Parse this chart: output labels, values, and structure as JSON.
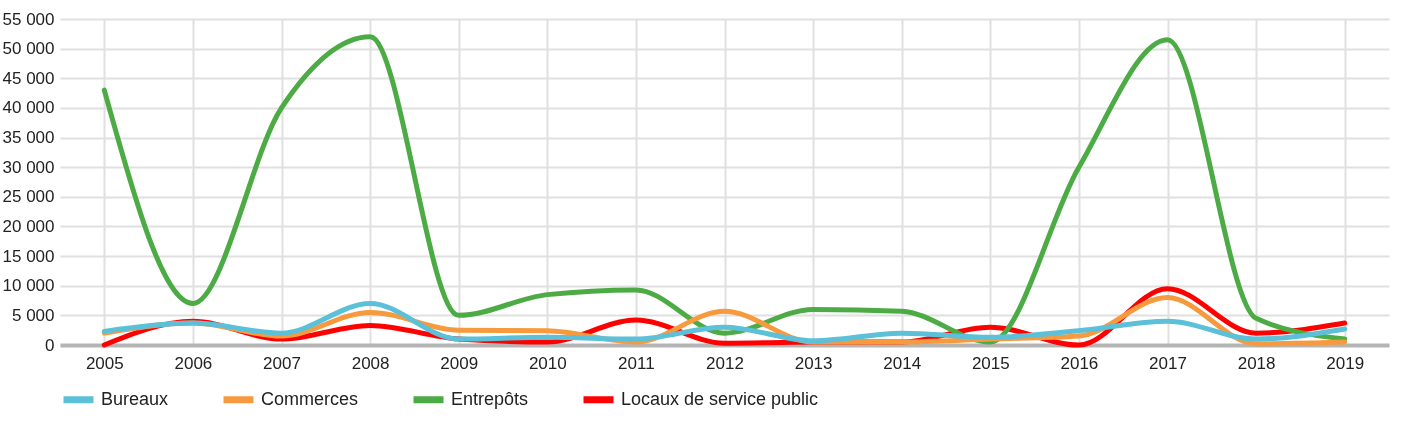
{
  "chart_data": {
    "type": "line",
    "categories": [
      "2005",
      "2006",
      "2007",
      "2008",
      "2009",
      "2010",
      "2011",
      "2012",
      "2013",
      "2014",
      "2015",
      "2016",
      "2017",
      "2018",
      "2019"
    ],
    "series": [
      {
        "name": "Bureaux",
        "color": "#5bc0d8",
        "values": [
          2300,
          3700,
          2000,
          7000,
          1000,
          1300,
          1000,
          3000,
          700,
          2000,
          1300,
          2400,
          4000,
          1000,
          2700
        ]
      },
      {
        "name": "Commerces",
        "color": "#f79a3e",
        "values": [
          2000,
          3700,
          1500,
          5500,
          2500,
          2400,
          500,
          5700,
          500,
          500,
          1000,
          1500,
          8000,
          200,
          500
        ]
      },
      {
        "name": "Entrepôts",
        "color": "#4dab46",
        "values": [
          43000,
          7000,
          40000,
          52000,
          5000,
          8500,
          9300,
          2000,
          6000,
          5700,
          500,
          30000,
          51500,
          4500,
          1000
        ]
      },
      {
        "name": "Locaux de service public",
        "color": "#ff0000",
        "values": [
          0,
          4000,
          1000,
          3300,
          1000,
          500,
          4200,
          300,
          500,
          500,
          3000,
          0,
          9500,
          2000,
          3700
        ]
      }
    ],
    "ylim": [
      0,
      55000
    ],
    "yticks": [
      0,
      {
        "value": 5000,
        "label": "5 000"
      },
      {
        "value": 10000,
        "label": "10 000"
      },
      {
        "value": 15000,
        "label": "15 000"
      },
      {
        "value": 20000,
        "label": "20 000"
      },
      {
        "value": 25000,
        "label": "25 000"
      },
      {
        "value": 30000,
        "label": "30 000"
      },
      {
        "value": 35000,
        "label": "35 000"
      },
      {
        "value": 40000,
        "label": "40 000"
      },
      {
        "value": 45000,
        "label": "45 000"
      },
      {
        "value": 50000,
        "label": "50 000"
      },
      {
        "value": 55000,
        "label": "55 000"
      }
    ],
    "grid": true,
    "legend": "bottom",
    "line_style": "solid"
  }
}
